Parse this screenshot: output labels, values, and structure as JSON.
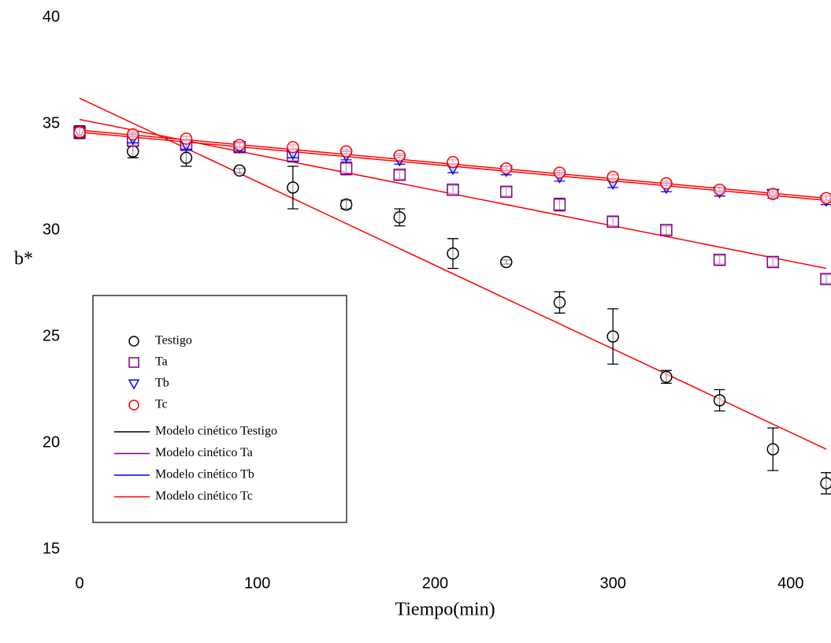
{
  "chart_data": {
    "type": "scatter",
    "x_label": "Tiempo(min)",
    "y_label": "b*",
    "x": [
      0,
      30,
      60,
      90,
      120,
      150,
      180,
      210,
      240,
      270,
      300,
      330,
      360,
      390,
      420
    ],
    "xlim": [
      0,
      420
    ],
    "xticks": [
      0,
      100,
      200,
      300,
      400
    ],
    "ylim": [
      15,
      40
    ],
    "yticks": [
      15,
      20,
      25,
      30,
      35,
      40
    ],
    "series": [
      {
        "name": "Testigo",
        "color": "#000000",
        "marker": "circle",
        "values": [
          34.6,
          33.7,
          33.4,
          32.8,
          32.0,
          31.2,
          30.6,
          28.9,
          28.5,
          26.6,
          25.0,
          23.1,
          22.0,
          19.7,
          18.1
        ],
        "errors": [
          0.3,
          0.3,
          0.4,
          0.1,
          1.0,
          0.2,
          0.4,
          0.7,
          0.1,
          0.5,
          1.3,
          0.3,
          0.5,
          1.0,
          0.5
        ]
      },
      {
        "name": "Ta",
        "color": "#800080",
        "marker": "square",
        "values": [
          34.6,
          34.2,
          34.0,
          33.9,
          33.5,
          32.9,
          32.6,
          31.9,
          31.8,
          31.2,
          30.4,
          30.0,
          28.6,
          28.5,
          27.7
        ],
        "errors": [
          0.2,
          0.2,
          0.2,
          0.2,
          0.3,
          0.3,
          0.2,
          0.2,
          0.2,
          0.3,
          0.2,
          0.2,
          0.2,
          0.2,
          0.2
        ]
      },
      {
        "name": "Tb",
        "color": "#0000ff",
        "marker": "triangle-down",
        "values": [
          34.6,
          34.3,
          34.0,
          33.9,
          33.6,
          33.5,
          33.3,
          32.9,
          32.8,
          32.5,
          32.2,
          32.0,
          31.8,
          31.7,
          31.4
        ],
        "errors": [
          0.2,
          0.2,
          0.2,
          0.2,
          0.2,
          0.2,
          0.2,
          0.2,
          0.2,
          0.2,
          0.2,
          0.2,
          0.2,
          0.2,
          0.2
        ]
      },
      {
        "name": "Tc",
        "color": "#ff0000",
        "marker": "circle",
        "values": [
          34.6,
          34.5,
          34.3,
          34.0,
          33.9,
          33.7,
          33.5,
          33.2,
          32.9,
          32.7,
          32.5,
          32.2,
          31.9,
          31.7,
          31.5
        ],
        "errors": [
          0.2,
          0.1,
          0.1,
          0.1,
          0.1,
          0.1,
          0.1,
          0.1,
          0.1,
          0.1,
          0.1,
          0.1,
          0.1,
          0.1,
          0.1
        ]
      }
    ],
    "models": [
      {
        "name": "Modelo cinético Testigo",
        "legend_color": "#000000",
        "color": "#ff0000",
        "x": [
          0,
          420
        ],
        "values": [
          36.2,
          19.7
        ]
      },
      {
        "name": "Modelo cinético Ta",
        "legend_color": "#800080",
        "color": "#ff0000",
        "x": [
          0,
          420
        ],
        "values": [
          35.2,
          28.2
        ]
      },
      {
        "name": "Modelo cinético Tb",
        "legend_color": "#0000ff",
        "color": "#ff0000",
        "x": [
          0,
          420
        ],
        "values": [
          34.6,
          31.4
        ]
      },
      {
        "name": "Modelo cinético Tc",
        "legend_color": "#ff0000",
        "color": "#ff0000",
        "x": [
          0,
          420
        ],
        "values": [
          34.7,
          31.5
        ]
      }
    ]
  }
}
